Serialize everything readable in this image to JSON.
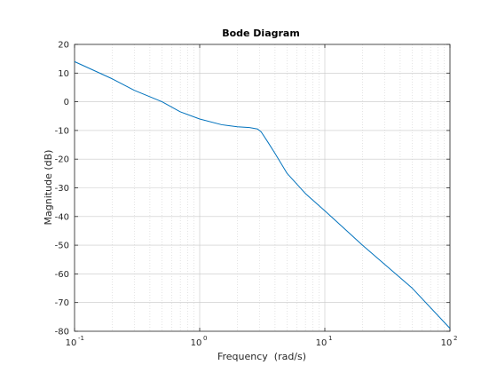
{
  "chart_data": {
    "type": "line",
    "title": "Bode Diagram",
    "xlabel": "Frequency  (rad/s)",
    "ylabel": "Magnitude (dB)",
    "x_scale": "log",
    "xlim": [
      0.1,
      100
    ],
    "ylim": [
      -80,
      20
    ],
    "x_ticks": [
      {
        "value": 0.1,
        "base": "10",
        "exp": "-1"
      },
      {
        "value": 1,
        "base": "10",
        "exp": "0"
      },
      {
        "value": 10,
        "base": "10",
        "exp": "1"
      },
      {
        "value": 100,
        "base": "10",
        "exp": "2"
      }
    ],
    "y_ticks": [
      20,
      10,
      0,
      -10,
      -20,
      -30,
      -40,
      -50,
      -60,
      -70,
      -80
    ],
    "grid": true,
    "line_color": "#0072bd",
    "series": [
      {
        "x": [
          0.1,
          0.2,
          0.3,
          0.5,
          0.7,
          1.0,
          1.5,
          2.0,
          2.5,
          2.9,
          3.1,
          3.5,
          4.0,
          5.0,
          7.0,
          10,
          20,
          50,
          100
        ],
        "y": [
          14,
          8,
          4,
          0,
          -3.5,
          -6,
          -8,
          -8.7,
          -9,
          -9.5,
          -10.5,
          -14,
          -18,
          -25,
          -32,
          -38,
          -50,
          -65,
          -79
        ]
      }
    ]
  }
}
